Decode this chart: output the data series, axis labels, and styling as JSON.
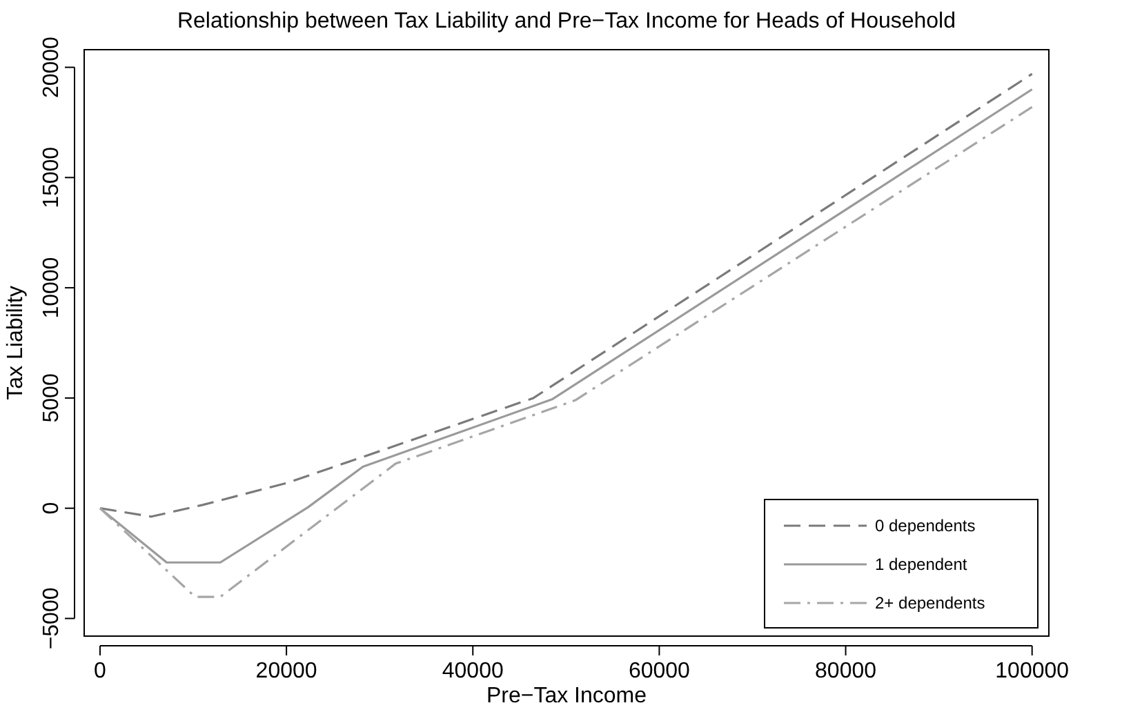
{
  "chart_data": {
    "type": "line",
    "title": "Relationship between Tax Liability and Pre−Tax Income for Heads of Household",
    "xlabel": "Pre−Tax Income",
    "ylabel": "Tax Liability",
    "xlim": [
      -1700,
      101800
    ],
    "ylim": [
      -5800,
      20800
    ],
    "xticks": [
      0,
      20000,
      40000,
      60000,
      80000,
      100000
    ],
    "yticks": [
      {
        "value": -5000,
        "label": "−5000"
      },
      0,
      5000,
      10000,
      15000,
      20000
    ],
    "grid": false,
    "legend": "bottom right",
    "series": [
      {
        "name": "0 dependents",
        "color": "#7a7a7a",
        "line_style": "dashed",
        "x": [
          0,
          5500,
          11000,
          20000,
          28700,
          46500,
          100000
        ],
        "values": [
          0,
          -380,
          150,
          1140,
          2400,
          5000,
          19700
        ]
      },
      {
        "name": "1 dependent",
        "color": "#9a9a9a",
        "line_style": "solid",
        "x": [
          0,
          7150,
          12900,
          22300,
          28200,
          48500,
          100000
        ],
        "values": [
          0,
          -2460,
          -2460,
          40,
          1880,
          4940,
          19000
        ]
      },
      {
        "name": "2+ dependents",
        "color": "#a6a6a6",
        "line_style": "dashdot",
        "x": [
          0,
          10200,
          12900,
          31700,
          51000,
          100000
        ],
        "values": [
          0,
          -4020,
          -4020,
          2020,
          4900,
          18200
        ]
      }
    ]
  }
}
